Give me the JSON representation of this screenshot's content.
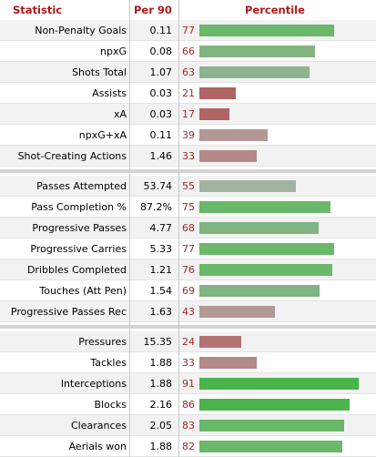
{
  "headers": {
    "statistic": "Statistic",
    "per90": "Per 90",
    "percentile": "Percentile"
  },
  "colors": {
    "header_text": "#b01818",
    "percentile_text": "#a02828"
  },
  "chart_data": {
    "type": "bar",
    "title": "",
    "xlabel": "Percentile",
    "xlim": [
      0,
      100
    ],
    "groups": [
      {
        "rows": [
          {
            "label": "Non-Penalty Goals",
            "per90": "0.11",
            "percentile": 77
          },
          {
            "label": "npxG",
            "per90": "0.08",
            "percentile": 66
          },
          {
            "label": "Shots Total",
            "per90": "1.07",
            "percentile": 63
          },
          {
            "label": "Assists",
            "per90": "0.03",
            "percentile": 21
          },
          {
            "label": "xA",
            "per90": "0.03",
            "percentile": 17
          },
          {
            "label": "npxG+xA",
            "per90": "0.11",
            "percentile": 39
          },
          {
            "label": "Shot-Creating Actions",
            "per90": "1.46",
            "percentile": 33
          }
        ]
      },
      {
        "rows": [
          {
            "label": "Passes Attempted",
            "per90": "53.74",
            "percentile": 55
          },
          {
            "label": "Pass Completion %",
            "per90": "87.2%",
            "percentile": 75
          },
          {
            "label": "Progressive Passes",
            "per90": "4.77",
            "percentile": 68
          },
          {
            "label": "Progressive Carries",
            "per90": "5.33",
            "percentile": 77
          },
          {
            "label": "Dribbles Completed",
            "per90": "1.21",
            "percentile": 76
          },
          {
            "label": "Touches (Att Pen)",
            "per90": "1.54",
            "percentile": 69
          },
          {
            "label": "Progressive Passes Rec",
            "per90": "1.63",
            "percentile": 43
          }
        ]
      },
      {
        "rows": [
          {
            "label": "Pressures",
            "per90": "15.35",
            "percentile": 24
          },
          {
            "label": "Tackles",
            "per90": "1.88",
            "percentile": 33
          },
          {
            "label": "Interceptions",
            "per90": "1.88",
            "percentile": 91
          },
          {
            "label": "Blocks",
            "per90": "2.16",
            "percentile": 86
          },
          {
            "label": "Clearances",
            "per90": "2.05",
            "percentile": 83
          },
          {
            "label": "Aerials won",
            "per90": "1.88",
            "percentile": 82
          }
        ]
      }
    ]
  }
}
